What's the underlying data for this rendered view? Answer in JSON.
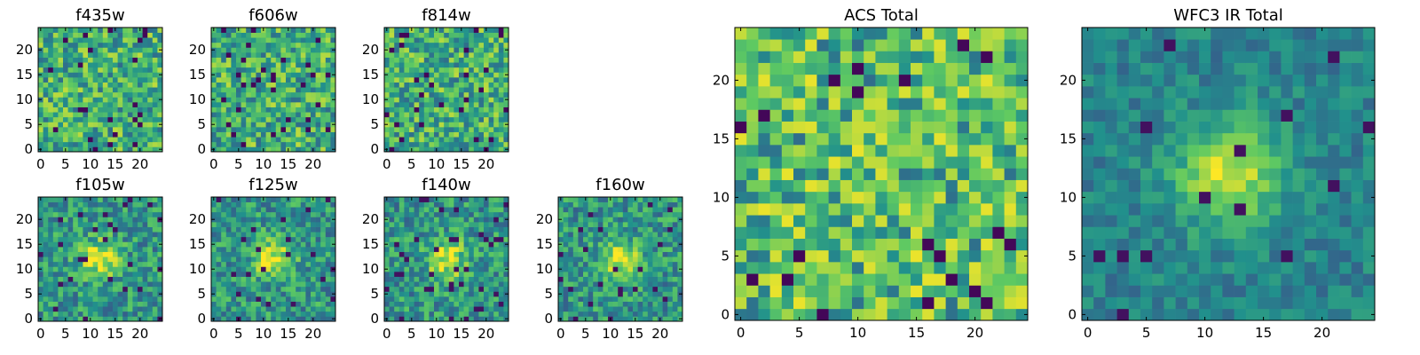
{
  "figure": {
    "panels": [
      {
        "id": "f435w",
        "title": "f435w",
        "style": "noise",
        "seed": 11,
        "xticks": [
          "0",
          "5",
          "10",
          "15",
          "20"
        ],
        "yticks": [
          "0",
          "5",
          "10",
          "15",
          "20"
        ]
      },
      {
        "id": "f606w",
        "title": "f606w",
        "style": "noise",
        "seed": 23,
        "xticks": [
          "0",
          "5",
          "10",
          "15",
          "20"
        ],
        "yticks": [
          "0",
          "5",
          "10",
          "15",
          "20"
        ]
      },
      {
        "id": "f814w",
        "title": "f814w",
        "style": "noise",
        "seed": 37,
        "xticks": [
          "0",
          "5",
          "10",
          "15",
          "20"
        ],
        "yticks": [
          "0",
          "5",
          "10",
          "15",
          "20"
        ]
      },
      {
        "id": "f105w",
        "title": "f105w",
        "style": "blob",
        "seed": 41,
        "xticks": [
          "0",
          "5",
          "10",
          "15",
          "20"
        ],
        "yticks": [
          "0",
          "5",
          "10",
          "15",
          "20"
        ]
      },
      {
        "id": "f125w",
        "title": "f125w",
        "style": "blob",
        "seed": 53,
        "xticks": [
          "0",
          "5",
          "10",
          "15",
          "20"
        ],
        "yticks": [
          "0",
          "5",
          "10",
          "15",
          "20"
        ]
      },
      {
        "id": "f140w",
        "title": "f140w",
        "style": "blob",
        "seed": 67,
        "xticks": [
          "0",
          "5",
          "10",
          "15",
          "20"
        ],
        "yticks": [
          "0",
          "5",
          "10",
          "15",
          "20"
        ]
      },
      {
        "id": "f160w",
        "title": "f160w",
        "style": "blob",
        "seed": 79,
        "xticks": [
          "0",
          "5",
          "10",
          "15",
          "20"
        ],
        "yticks": [
          "0",
          "5",
          "10",
          "15",
          "20"
        ]
      },
      {
        "id": "acs-total",
        "title": "ACS Total",
        "style": "noise-bright",
        "seed": 97,
        "xticks": [
          "0",
          "5",
          "10",
          "15",
          "20"
        ],
        "yticks": [
          "0",
          "5",
          "10",
          "15",
          "20"
        ]
      },
      {
        "id": "wfc3-ir-total",
        "title": "WFC3 IR Total",
        "style": "blob-strong",
        "seed": 103,
        "xticks": [
          "0",
          "5",
          "10",
          "15",
          "20"
        ],
        "yticks": [
          "0",
          "5",
          "10",
          "15",
          "20"
        ]
      }
    ]
  },
  "chart_data": {
    "type": "heatmap",
    "grid_size": [
      25,
      25
    ],
    "colormap": "viridis",
    "axis_range": {
      "x": [
        0,
        24
      ],
      "y": [
        0,
        24
      ]
    },
    "tick_values": [
      0,
      5,
      10,
      15,
      20
    ],
    "note": "Per-pixel intensities are not legible; panels are 25x25 image cutouts.",
    "colors": [
      "#440154",
      "#3b528b",
      "#21918c",
      "#5ec962",
      "#fde725"
    ]
  }
}
